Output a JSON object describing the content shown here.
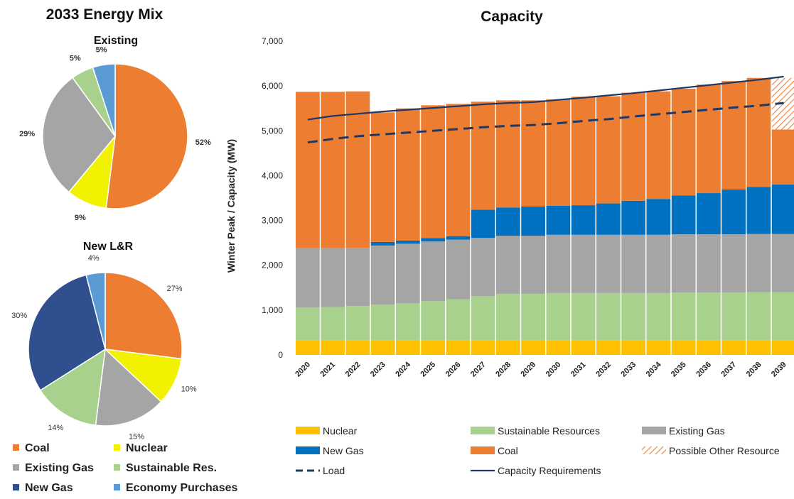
{
  "colors": {
    "coal": "#ED7D31",
    "nuclear": "#F2F200",
    "existing_gas": "#A5A5A5",
    "sustainable": "#A9D18E",
    "new_gas": "#2F4F8F",
    "economy": "#5B9BD5",
    "bar_nuclear": "#FFC000",
    "bar_sustainable": "#A9D18E",
    "bar_existing_gas": "#A5A5A5",
    "bar_new_gas": "#0070C0",
    "bar_coal": "#ED7D31",
    "load": "#1F3864",
    "capacity_req": "#1F3864"
  },
  "left_panel": {
    "title": "2033 Energy Mix",
    "legend": [
      {
        "label": "Coal",
        "color_key": "coal"
      },
      {
        "label": "Nuclear",
        "color_key": "nuclear"
      },
      {
        "label": "Existing Gas",
        "color_key": "existing_gas"
      },
      {
        "label": "Sustainable Res.",
        "color_key": "sustainable"
      },
      {
        "label": "New Gas",
        "color_key": "new_gas"
      },
      {
        "label": "Economy Purchases",
        "color_key": "economy"
      }
    ]
  },
  "chart_data": [
    {
      "type": "pie",
      "title": "Existing",
      "slices": [
        {
          "name": "Coal",
          "value": 52,
          "label": "52%",
          "color_key": "coal"
        },
        {
          "name": "Nuclear",
          "value": 9,
          "label": "9%",
          "color_key": "nuclear"
        },
        {
          "name": "Existing Gas",
          "value": 29,
          "label": "29%",
          "color_key": "existing_gas"
        },
        {
          "name": "Sustainable Res.",
          "value": 5,
          "label": "5%",
          "color_key": "sustainable"
        },
        {
          "name": "Economy Purchases",
          "value": 5,
          "label": "5%",
          "color_key": "economy"
        }
      ]
    },
    {
      "type": "pie",
      "title": "New L&R",
      "slices": [
        {
          "name": "Coal",
          "value": 27,
          "label": "27%",
          "color_key": "coal"
        },
        {
          "name": "Nuclear",
          "value": 10,
          "label": "10%",
          "color_key": "nuclear"
        },
        {
          "name": "Existing Gas",
          "value": 15,
          "label": "15%",
          "color_key": "existing_gas"
        },
        {
          "name": "Sustainable Res.",
          "value": 14,
          "label": "14%",
          "color_key": "sustainable"
        },
        {
          "name": "New Gas",
          "value": 30,
          "label": "30%",
          "color_key": "new_gas"
        },
        {
          "name": "Economy Purchases",
          "value": 4,
          "label": "4%",
          "color_key": "economy"
        }
      ]
    },
    {
      "type": "bar",
      "stacked": true,
      "title": "Capacity",
      "ylabel": "Winter Peak / Capacity (MW)",
      "xlabel": "",
      "ylim": [
        0,
        7000
      ],
      "yticks": [
        0,
        1000,
        2000,
        3000,
        4000,
        5000,
        6000,
        7000
      ],
      "ytick_labels": [
        "0",
        "1,000",
        "2,000",
        "3,000",
        "4,000",
        "5,000",
        "6,000",
        "7,000"
      ],
      "categories": [
        "2020",
        "2021",
        "2022",
        "2023",
        "2024",
        "2025",
        "2026",
        "2027",
        "2028",
        "2029",
        "2030",
        "2031",
        "2032",
        "2033",
        "2034",
        "2035",
        "2036",
        "2037",
        "2038",
        "2039"
      ],
      "series": [
        {
          "name": "Nuclear",
          "color_key": "bar_nuclear",
          "values": [
            330,
            330,
            330,
            330,
            330,
            330,
            330,
            330,
            330,
            330,
            330,
            330,
            330,
            330,
            330,
            330,
            330,
            330,
            330,
            330
          ]
        },
        {
          "name": "Sustainable Resources",
          "color_key": "bar_sustainable",
          "values": [
            730,
            740,
            760,
            790,
            820,
            870,
            910,
            980,
            1030,
            1030,
            1050,
            1050,
            1050,
            1050,
            1050,
            1060,
            1060,
            1060,
            1070,
            1070
          ]
        },
        {
          "name": "Existing Gas",
          "color_key": "bar_existing_gas",
          "values": [
            1320,
            1310,
            1300,
            1320,
            1330,
            1330,
            1330,
            1300,
            1300,
            1300,
            1300,
            1300,
            1300,
            1300,
            1300,
            1300,
            1300,
            1300,
            1300,
            1300
          ]
        },
        {
          "name": "New Gas",
          "color_key": "bar_new_gas",
          "values": [
            0,
            0,
            0,
            80,
            70,
            80,
            80,
            630,
            630,
            650,
            650,
            660,
            700,
            760,
            800,
            870,
            920,
            1000,
            1050,
            1100
          ]
        },
        {
          "name": "Coal",
          "color_key": "bar_coal",
          "values": [
            3490,
            3490,
            3490,
            2890,
            2950,
            2960,
            2950,
            2410,
            2390,
            2370,
            2370,
            2420,
            2390,
            2410,
            2400,
            2380,
            2420,
            2420,
            2430,
            1230
          ]
        },
        {
          "name": "Possible Other Resource",
          "color_key": "bar_coal",
          "pattern": "hatch",
          "values": [
            0,
            0,
            0,
            0,
            0,
            0,
            0,
            0,
            0,
            0,
            0,
            0,
            0,
            0,
            0,
            0,
            0,
            0,
            0,
            1150
          ]
        }
      ],
      "lines": [
        {
          "name": "Load",
          "style": "dashed",
          "color_key": "load",
          "values": [
            4740,
            4820,
            4880,
            4920,
            4960,
            5000,
            5040,
            5080,
            5110,
            5130,
            5170,
            5220,
            5260,
            5320,
            5370,
            5420,
            5470,
            5520,
            5560,
            5620
          ]
        },
        {
          "name": "Capacity Requirements",
          "style": "solid",
          "color_key": "capacity_req",
          "values": [
            5250,
            5330,
            5380,
            5430,
            5470,
            5510,
            5550,
            5590,
            5620,
            5640,
            5690,
            5740,
            5790,
            5840,
            5900,
            5960,
            6020,
            6080,
            6140,
            6210
          ]
        }
      ],
      "legend": [
        {
          "label": "Nuclear",
          "kind": "box",
          "color_key": "bar_nuclear"
        },
        {
          "label": "Sustainable Resources",
          "kind": "box",
          "color_key": "bar_sustainable"
        },
        {
          "label": "Existing Gas",
          "kind": "box",
          "color_key": "bar_existing_gas"
        },
        {
          "label": "New Gas",
          "kind": "box",
          "color_key": "bar_new_gas"
        },
        {
          "label": "Coal",
          "kind": "box",
          "color_key": "bar_coal"
        },
        {
          "label": "Possible Other Resource",
          "kind": "hatch",
          "color_key": "bar_coal"
        },
        {
          "label": "Load",
          "kind": "dashed",
          "color_key": "load"
        },
        {
          "label": "Capacity Requirements",
          "kind": "solid",
          "color_key": "capacity_req"
        }
      ]
    }
  ]
}
